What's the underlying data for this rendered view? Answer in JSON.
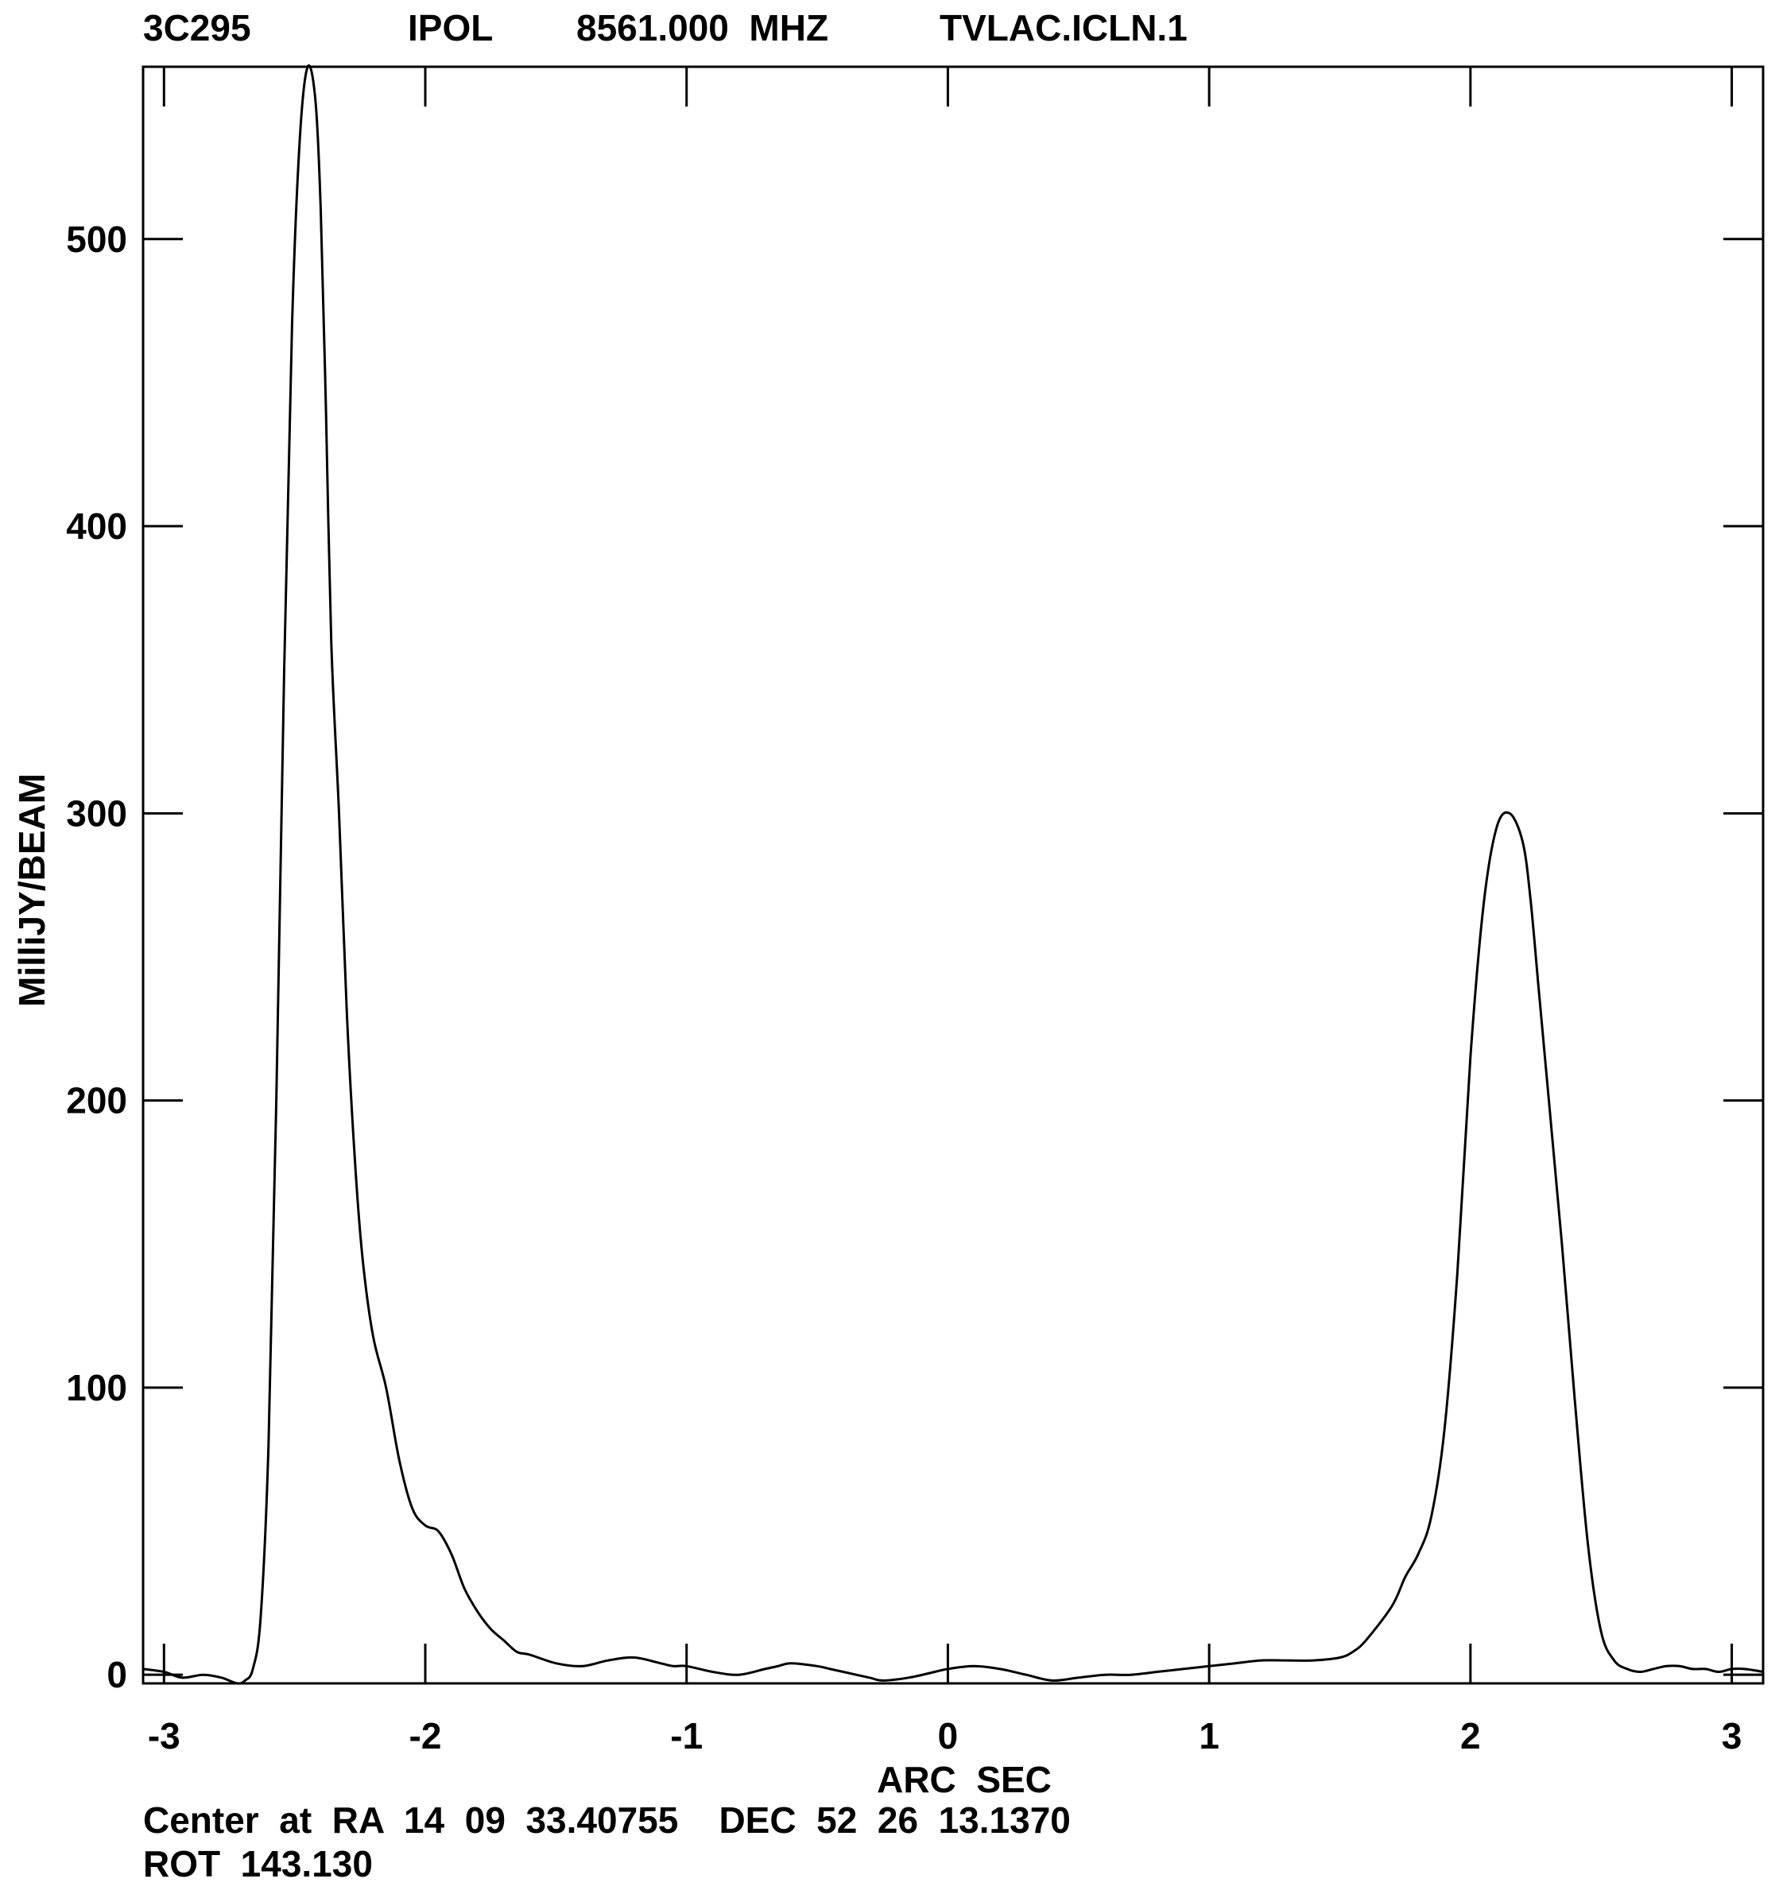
{
  "header": {
    "source": "3C295",
    "stokes": "IPOL",
    "frequency": "8561.000  MHZ",
    "image_name": "TVLAC.ICLN.1"
  },
  "footer": {
    "center": "Center  at  RA  14  09  33.40755    DEC  52  26  13.1370",
    "rotation": "ROT  143.130"
  },
  "chart_data": {
    "type": "line",
    "title": "",
    "xlabel": "ARC  SEC",
    "ylabel": "MilliJY/BEAM",
    "xlim": [
      -3.08,
      3.12
    ],
    "ylim": [
      -3,
      560
    ],
    "xticks": [
      -3,
      -2,
      -1,
      0,
      1,
      2,
      3
    ],
    "xtick_labels": [
      "-3",
      "-2",
      "-1",
      "0",
      "1",
      "2",
      "3"
    ],
    "yticks": [
      0,
      100,
      200,
      300,
      400,
      500
    ],
    "ytick_labels": [
      "0",
      "100",
      "200",
      "300",
      "400",
      "500"
    ],
    "grid": false,
    "series": [
      {
        "x": [
          -3.08,
          -3.0,
          -2.93,
          -2.85,
          -2.78,
          -2.72,
          -2.69,
          -2.66,
          -2.63,
          -2.6,
          -2.57,
          -2.54,
          -2.51,
          -2.48,
          -2.45,
          -2.42,
          -2.4,
          -2.38,
          -2.36,
          -2.33,
          -2.3,
          -2.27,
          -2.24,
          -2.2,
          -2.15,
          -2.1,
          -2.05,
          -2.0,
          -1.95,
          -1.9,
          -1.85,
          -1.8,
          -1.75,
          -1.7,
          -1.65,
          -1.6,
          -1.5,
          -1.4,
          -1.3,
          -1.2,
          -1.1,
          -1.05,
          -1.0,
          -0.9,
          -0.8,
          -0.7,
          -0.65,
          -0.6,
          -0.5,
          -0.45,
          -0.4,
          -0.3,
          -0.25,
          -0.15,
          -0.05,
          0.0,
          0.1,
          0.2,
          0.3,
          0.4,
          0.5,
          0.6,
          0.7,
          0.8,
          0.9,
          1.0,
          1.1,
          1.2,
          1.3,
          1.4,
          1.5,
          1.55,
          1.6,
          1.7,
          1.75,
          1.8,
          1.85,
          1.9,
          1.95,
          2.0,
          2.05,
          2.1,
          2.15,
          2.2,
          2.23,
          2.26,
          2.3,
          2.35,
          2.4,
          2.45,
          2.5,
          2.55,
          2.6,
          2.65,
          2.7,
          2.75,
          2.8,
          2.85,
          2.9,
          2.95,
          3.0,
          3.05,
          3.12
        ],
        "y": [
          2,
          1,
          -1,
          0,
          -1,
          -3,
          -2,
          2,
          20,
          80,
          200,
          350,
          470,
          535,
          560,
          548,
          510,
          440,
          360,
          300,
          230,
          180,
          145,
          118,
          100,
          75,
          58,
          52,
          50,
          42,
          30,
          22,
          16,
          12,
          8,
          7,
          4,
          3,
          5,
          6,
          4,
          3,
          3,
          1,
          0,
          2,
          3,
          4,
          3,
          2,
          1,
          -1,
          -2,
          -1,
          1,
          2,
          3,
          2,
          0,
          -2,
          -1,
          0,
          0,
          1,
          2,
          3,
          4,
          5,
          5,
          5,
          6,
          8,
          12,
          24,
          34,
          42,
          55,
          85,
          140,
          215,
          268,
          295,
          300,
          290,
          270,
          240,
          200,
          150,
          95,
          45,
          15,
          5,
          2,
          1,
          2,
          3,
          3,
          2,
          2,
          1,
          2,
          2,
          1
        ]
      }
    ]
  }
}
